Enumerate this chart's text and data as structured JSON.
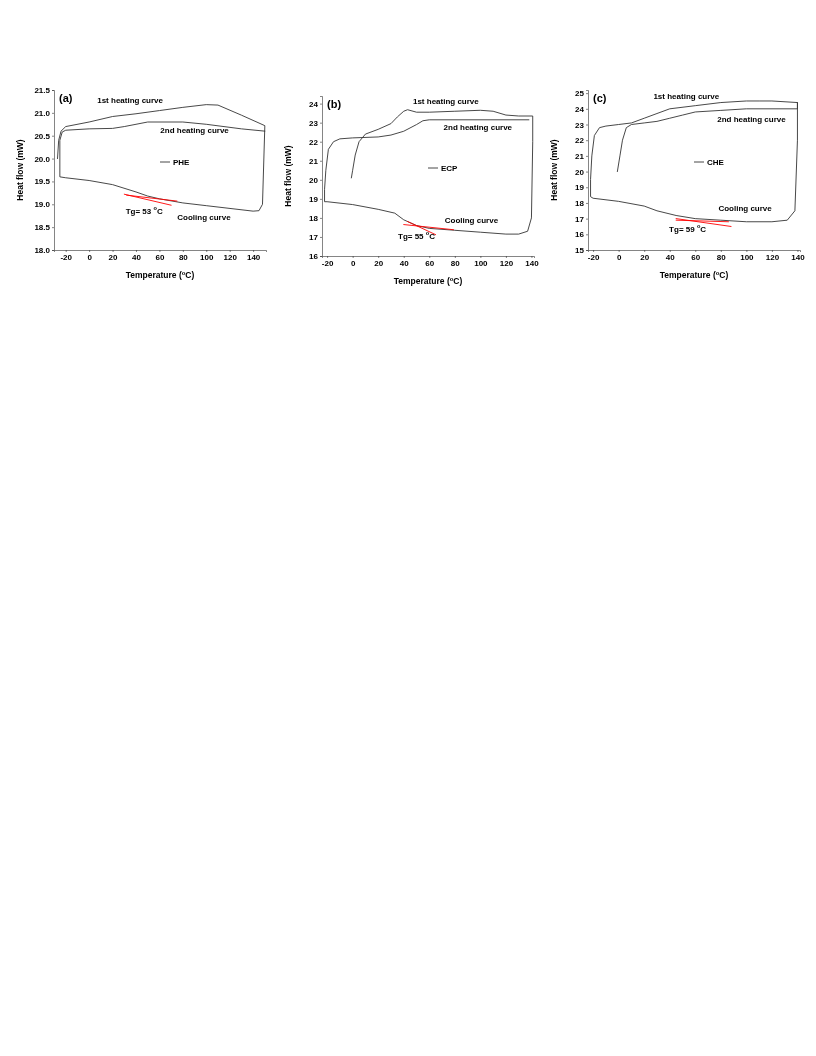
{
  "chart_data": [
    {
      "type": "line",
      "xlabel": "Temperature ($^{o}$C)",
      "ylabel": "Heat flow (mW)",
      "xlim": [
        -30,
        151
      ],
      "ylim": [
        18,
        21.5
      ],
      "xticks": [
        -20,
        0,
        20,
        40,
        60,
        80,
        100,
        120,
        140
      ],
      "yticks": [
        {
          "value": 18,
          "label": "18.0"
        },
        18.5,
        {
          "value": 19,
          "label": "19.0"
        },
        19.5,
        {
          "value": 20,
          "label": "20.0"
        },
        20.5,
        {
          "value": 21,
          "label": "21.0"
        },
        21.5
      ],
      "legend": "center",
      "series": [
        {
          "name": "PHE",
          "color": "#333333",
          "x": [
            -27,
            -26,
            -24,
            -20,
            0,
            20,
            40,
            60,
            80,
            100,
            110,
            130,
            150,
            148,
            145,
            140,
            100,
            80,
            60,
            50,
            40,
            20,
            0,
            -20,
            -25,
            -25,
            -23,
            -20,
            0,
            20,
            30,
            50,
            80,
            100,
            130,
            150
          ],
          "values": [
            20.0,
            20.4,
            20.6,
            20.7,
            20.8,
            20.92,
            20.98,
            21.05,
            21.12,
            21.18,
            21.17,
            20.95,
            20.72,
            19.0,
            18.86,
            18.85,
            18.97,
            19.03,
            19.12,
            19.18,
            19.27,
            19.43,
            19.52,
            19.58,
            19.6,
            20.4,
            20.58,
            20.62,
            20.65,
            20.66,
            20.7,
            20.8,
            20.8,
            20.75,
            20.65,
            20.6
          ]
        },
        {
          "type": "line",
          "color": "#ff0000",
          "x": [
            30,
            70
          ],
          "values": [
            19.22,
            18.98
          ]
        },
        {
          "type": "line",
          "color": "#ff0000",
          "x": [
            32,
            75
          ],
          "values": [
            19.2,
            19.07
          ]
        }
      ],
      "annotations": [
        "(a)",
        "1st heating curve",
        "2nd heating curve",
        "Cooling curve",
        "Tg= 53 $^{o}$C"
      ]
    },
    {
      "type": "line",
      "xlabel": "Temperature ($^{o}$C)",
      "ylabel": "Heat flow (mW)",
      "xlim": [
        -24,
        142
      ],
      "ylim": [
        16,
        24.4
      ],
      "xticks": [
        -20,
        0,
        20,
        40,
        60,
        80,
        100,
        120,
        140
      ],
      "yticks": [
        16,
        17,
        18,
        19,
        20,
        21,
        22,
        23,
        24
      ],
      "legend": "center",
      "series": [
        {
          "name": "ECP",
          "color": "#333333",
          "x": [
            -1,
            0,
            2,
            5,
            10,
            20,
            30,
            35,
            40,
            43,
            50,
            60,
            80,
            100,
            110,
            120,
            130,
            141,
            141,
            140,
            137,
            130,
            120,
            100,
            80,
            60,
            50,
            40,
            33,
            20,
            0,
            -20,
            -22,
            -22,
            -21,
            -19,
            -15,
            -10,
            0,
            20,
            30,
            40,
            50,
            55,
            60,
            138
          ],
          "values": [
            20.1,
            20.5,
            21.3,
            22.0,
            22.4,
            22.65,
            22.95,
            23.3,
            23.6,
            23.68,
            23.55,
            23.55,
            23.6,
            23.65,
            23.6,
            23.4,
            23.35,
            23.35,
            22.0,
            18.0,
            17.3,
            17.15,
            17.15,
            17.25,
            17.35,
            17.45,
            17.6,
            17.9,
            18.25,
            18.45,
            18.7,
            18.85,
            18.85,
            19.5,
            20.5,
            21.6,
            22.0,
            22.15,
            22.2,
            22.25,
            22.35,
            22.55,
            22.9,
            23.1,
            23.15,
            23.15
          ]
        },
        {
          "type": "line",
          "color": "#ff0000",
          "x": [
            40,
            79
          ],
          "values": [
            17.65,
            17.38
          ]
        },
        {
          "type": "line",
          "color": "#ff0000",
          "x": [
            43,
            65
          ],
          "values": [
            17.81,
            17.12
          ]
        }
      ],
      "annotations": [
        "(b)",
        "1st heating curve",
        "2nd heating curve",
        "Cooling curve",
        "Tg= 55 $^{o}$C"
      ]
    },
    {
      "type": "line",
      "xlabel": "Temperature ($^{o}$C)",
      "ylabel": "Heat flow (mW)",
      "xlim": [
        -24,
        142
      ],
      "ylim": [
        15,
        25.2
      ],
      "xticks": [
        -20,
        0,
        20,
        40,
        60,
        80,
        100,
        120,
        140
      ],
      "yticks": [
        15,
        16,
        17,
        18,
        19,
        20,
        21,
        22,
        23,
        24,
        25
      ],
      "legend": "center",
      "series": [
        {
          "name": "CHE",
          "color": "#333333",
          "x": [
            -1,
            1,
            3,
            6,
            10,
            20,
            30,
            40,
            50,
            60,
            80,
            100,
            140,
            140,
            140,
            138,
            132,
            120,
            100,
            80,
            60,
            45,
            30,
            20,
            0,
            -20,
            -22,
            -22,
            -21,
            -19,
            -15,
            -10,
            0,
            10,
            20,
            30,
            40,
            60,
            80,
            100,
            110,
            120,
            140
          ],
          "values": [
            20.0,
            21.0,
            22.0,
            22.8,
            23.0,
            23.1,
            23.2,
            23.4,
            23.6,
            23.8,
            23.9,
            24.0,
            24.0,
            24.4,
            22.0,
            17.5,
            16.9,
            16.8,
            16.8,
            16.9,
            17.0,
            17.2,
            17.5,
            17.8,
            18.1,
            18.3,
            18.4,
            19.5,
            21.0,
            22.3,
            22.8,
            22.9,
            23.0,
            23.1,
            23.4,
            23.7,
            24.0,
            24.2,
            24.4,
            24.5,
            24.5,
            24.5,
            24.4
          ]
        },
        {
          "type": "line",
          "color": "#ff0000",
          "x": [
            45,
            86
          ],
          "values": [
            16.9,
            16.8
          ]
        },
        {
          "type": "line",
          "color": "#ff0000",
          "x": [
            45,
            88
          ],
          "values": [
            17.0,
            16.5
          ]
        }
      ],
      "annotations": [
        "(c)",
        "1st heating curve",
        "2nd heating curve",
        "Cooling curve",
        "Tg= 59 $^{o}$C"
      ]
    }
  ]
}
